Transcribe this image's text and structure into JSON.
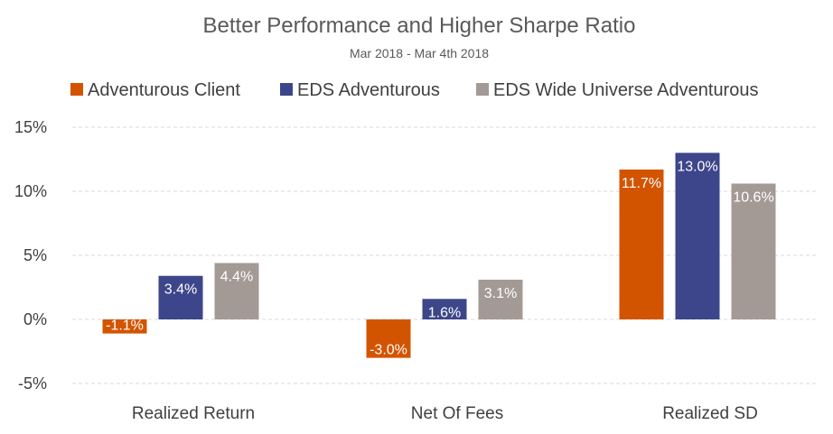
{
  "chart_data": {
    "type": "bar",
    "title": "Better Performance and Higher Sharpe Ratio",
    "subtitle": "Mar 2018 - Mar 4th 2018",
    "categories": [
      "Realized Return",
      "Net Of Fees",
      "Realized SD"
    ],
    "series": [
      {
        "name": "Adventurous Client",
        "color": "#D35400",
        "values": [
          -1.1,
          -3.0,
          11.7
        ],
        "labels": [
          "-1.1%",
          "-3.0%",
          "11.7%"
        ]
      },
      {
        "name": "EDS Adventurous",
        "color": "#3D468A",
        "values": [
          3.4,
          1.6,
          13.0
        ],
        "labels": [
          "3.4%",
          "1.6%",
          "13.0%"
        ]
      },
      {
        "name": "EDS Wide Universe Adventurous",
        "color": "#A39A96",
        "values": [
          4.4,
          3.1,
          10.6
        ],
        "labels": [
          "4.4%",
          "3.1%",
          "10.6%"
        ]
      }
    ],
    "ylim": [
      -5,
      15
    ],
    "yticks": [
      15,
      10,
      5,
      0,
      -5
    ],
    "ytick_labels": [
      "15%",
      "10%",
      "5%",
      "0%",
      "-5%"
    ],
    "xlabel": "",
    "ylabel": "",
    "grid": true,
    "legend": "top"
  }
}
